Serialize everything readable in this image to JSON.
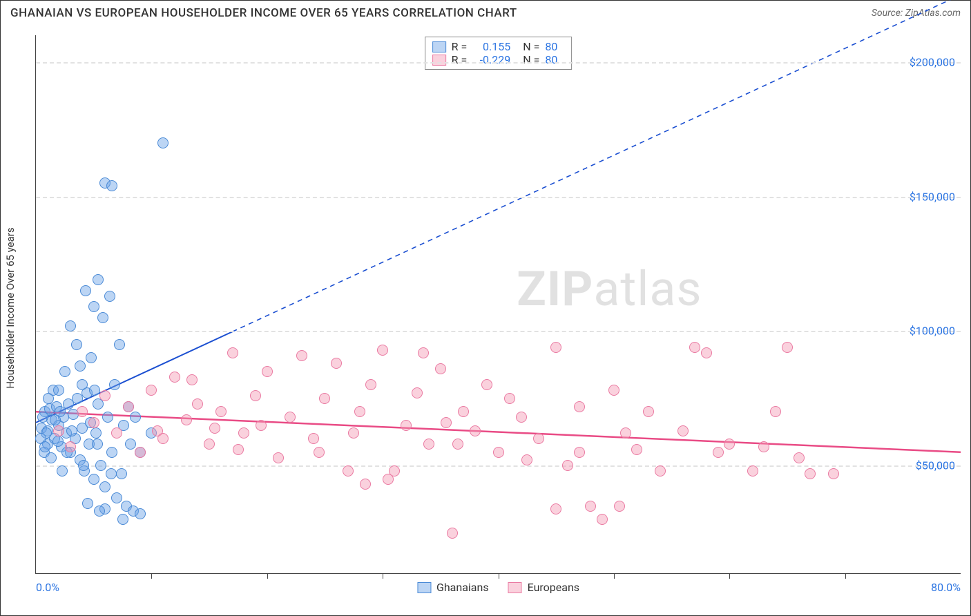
{
  "title": "GHANAIAN VS EUROPEAN HOUSEHOLDER INCOME OVER 65 YEARS CORRELATION CHART",
  "source": "Source: ZipAtlas.com",
  "watermark_bold": "ZIP",
  "watermark_rest": "atlas",
  "chart": {
    "type": "scatter",
    "ylabel": "Householder Income Over 65 years",
    "x_min": 0,
    "x_max": 80,
    "y_min": 10000,
    "y_max": 210000,
    "x_tick_start": "0.0%",
    "x_tick_end": "80.0%",
    "x_minor_ticks": [
      10,
      20,
      30,
      40,
      50,
      60,
      70
    ],
    "y_ticks": [
      50000,
      100000,
      150000,
      200000
    ],
    "y_tick_labels": [
      "$50,000",
      "$100,000",
      "$150,000",
      "$200,000"
    ],
    "grid_color": "#e2e2e2",
    "plot_border_color": "#444",
    "point_radius": 8,
    "series": [
      {
        "name": "Ghanaians",
        "fill": "rgba(106,162,230,0.45)",
        "stroke": "#4a8ad6",
        "R": "0.155",
        "N": "80",
        "trend": {
          "x1": 0,
          "y1": 66000,
          "x2": 80,
          "y2": 225000,
          "solid_until_x": 17,
          "color": "#1b4fd1",
          "width": 2
        },
        "points": [
          [
            0.5,
            64000
          ],
          [
            0.8,
            70000
          ],
          [
            1.0,
            63000
          ],
          [
            1.2,
            71000
          ],
          [
            1.0,
            58000
          ],
          [
            1.4,
            67000
          ],
          [
            1.6,
            60000
          ],
          [
            1.8,
            72000
          ],
          [
            2.0,
            65000
          ],
          [
            2.2,
            57000
          ],
          [
            2.4,
            68000
          ],
          [
            2.6,
            62000
          ],
          [
            2.8,
            73000
          ],
          [
            3.0,
            55000
          ],
          [
            3.2,
            69000
          ],
          [
            3.4,
            60000
          ],
          [
            3.6,
            75000
          ],
          [
            3.8,
            52000
          ],
          [
            4.0,
            80000
          ],
          [
            4.0,
            64000
          ],
          [
            4.2,
            48000
          ],
          [
            4.4,
            77000
          ],
          [
            4.6,
            58000
          ],
          [
            4.8,
            90000
          ],
          [
            5.0,
            45000
          ],
          [
            5.0,
            109000
          ],
          [
            5.2,
            62000
          ],
          [
            5.4,
            119000
          ],
          [
            5.4,
            73000
          ],
          [
            5.6,
            50000
          ],
          [
            5.8,
            105000
          ],
          [
            6.0,
            42000
          ],
          [
            6.0,
            155000
          ],
          [
            6.2,
            68000
          ],
          [
            6.4,
            113000
          ],
          [
            6.6,
            55000
          ],
          [
            6.6,
            154000
          ],
          [
            6.8,
            80000
          ],
          [
            7.0,
            38000
          ],
          [
            7.2,
            95000
          ],
          [
            7.4,
            47000
          ],
          [
            7.6,
            65000
          ],
          [
            7.8,
            35000
          ],
          [
            8.0,
            72000
          ],
          [
            8.2,
            58000
          ],
          [
            8.4,
            33000
          ],
          [
            8.6,
            68000
          ],
          [
            9.0,
            32000
          ],
          [
            9.0,
            55000
          ],
          [
            4.3,
            115000
          ],
          [
            3.5,
            95000
          ],
          [
            2.5,
            85000
          ],
          [
            11.0,
            170000
          ],
          [
            10.0,
            62000
          ],
          [
            1.5,
            78000
          ],
          [
            0.7,
            55000
          ],
          [
            0.9,
            62000
          ],
          [
            1.1,
            75000
          ],
          [
            1.3,
            53000
          ],
          [
            3.0,
            102000
          ],
          [
            6.0,
            34000
          ],
          [
            7.5,
            30000
          ],
          [
            4.5,
            36000
          ],
          [
            5.5,
            33000
          ],
          [
            2.0,
            78000
          ],
          [
            2.3,
            48000
          ],
          [
            1.7,
            67000
          ],
          [
            0.6,
            68000
          ],
          [
            0.4,
            60000
          ],
          [
            3.8,
            87000
          ],
          [
            4.1,
            50000
          ],
          [
            5.3,
            58000
          ],
          [
            6.5,
            47000
          ],
          [
            2.7,
            55000
          ],
          [
            3.1,
            63000
          ],
          [
            1.9,
            59000
          ],
          [
            0.8,
            57000
          ],
          [
            4.7,
            66000
          ],
          [
            5.1,
            78000
          ],
          [
            2.1,
            70000
          ]
        ]
      },
      {
        "name": "Europeans",
        "fill": "rgba(244,154,180,0.45)",
        "stroke": "#ea7aa2",
        "R": "-0.229",
        "N": "80",
        "trend": {
          "x1": 0,
          "y1": 70000,
          "x2": 80,
          "y2": 55000,
          "solid_until_x": 80,
          "color": "#e94b85",
          "width": 2.5
        },
        "points": [
          [
            2.0,
            63000
          ],
          [
            4.0,
            70000
          ],
          [
            6.0,
            76000
          ],
          [
            8.0,
            72000
          ],
          [
            10.0,
            78000
          ],
          [
            10.5,
            63000
          ],
          [
            12.0,
            83000
          ],
          [
            13.0,
            67000
          ],
          [
            14.0,
            73000
          ],
          [
            15.0,
            58000
          ],
          [
            16.0,
            70000
          ],
          [
            17.0,
            92000
          ],
          [
            18.0,
            62000
          ],
          [
            19.0,
            76000
          ],
          [
            20.0,
            85000
          ],
          [
            21.0,
            53000
          ],
          [
            22.0,
            68000
          ],
          [
            23.0,
            91000
          ],
          [
            24.0,
            60000
          ],
          [
            25.0,
            75000
          ],
          [
            26.0,
            88000
          ],
          [
            27.0,
            48000
          ],
          [
            28.0,
            70000
          ],
          [
            29.0,
            80000
          ],
          [
            30.0,
            93000
          ],
          [
            30.5,
            45000
          ],
          [
            32.0,
            65000
          ],
          [
            33.0,
            77000
          ],
          [
            34.0,
            58000
          ],
          [
            35.0,
            86000
          ],
          [
            36.0,
            25000
          ],
          [
            37.0,
            70000
          ],
          [
            38.0,
            63000
          ],
          [
            39.0,
            80000
          ],
          [
            40.0,
            55000
          ],
          [
            41.0,
            75000
          ],
          [
            42.0,
            68000
          ],
          [
            43.5,
            60000
          ],
          [
            45.0,
            94000
          ],
          [
            46.0,
            50000
          ],
          [
            47.0,
            72000
          ],
          [
            48.0,
            35000
          ],
          [
            49.0,
            30000
          ],
          [
            50.0,
            78000
          ],
          [
            51.0,
            62000
          ],
          [
            52.0,
            56000
          ],
          [
            53.0,
            70000
          ],
          [
            54.0,
            48000
          ],
          [
            56.0,
            63000
          ],
          [
            57.0,
            94000
          ],
          [
            58.0,
            92000
          ],
          [
            59.0,
            55000
          ],
          [
            45.0,
            34000
          ],
          [
            50.5,
            35000
          ],
          [
            60.0,
            58000
          ],
          [
            62.0,
            48000
          ],
          [
            64.0,
            70000
          ],
          [
            66.0,
            53000
          ],
          [
            67.0,
            47000
          ],
          [
            47.0,
            55000
          ],
          [
            63.0,
            57000
          ],
          [
            65.0,
            94000
          ],
          [
            69.0,
            47000
          ],
          [
            3.0,
            57000
          ],
          [
            5.0,
            66000
          ],
          [
            7.0,
            62000
          ],
          [
            9.0,
            55000
          ],
          [
            11.0,
            60000
          ],
          [
            13.5,
            82000
          ],
          [
            15.5,
            64000
          ],
          [
            17.5,
            56000
          ],
          [
            19.5,
            65000
          ],
          [
            24.5,
            55000
          ],
          [
            27.5,
            62000
          ],
          [
            33.5,
            92000
          ],
          [
            36.5,
            58000
          ],
          [
            42.5,
            52000
          ],
          [
            28.5,
            43000
          ],
          [
            31.0,
            48000
          ],
          [
            35.5,
            66000
          ]
        ]
      }
    ],
    "legend_bottom": [
      "Ghanaians",
      "Europeans"
    ]
  }
}
